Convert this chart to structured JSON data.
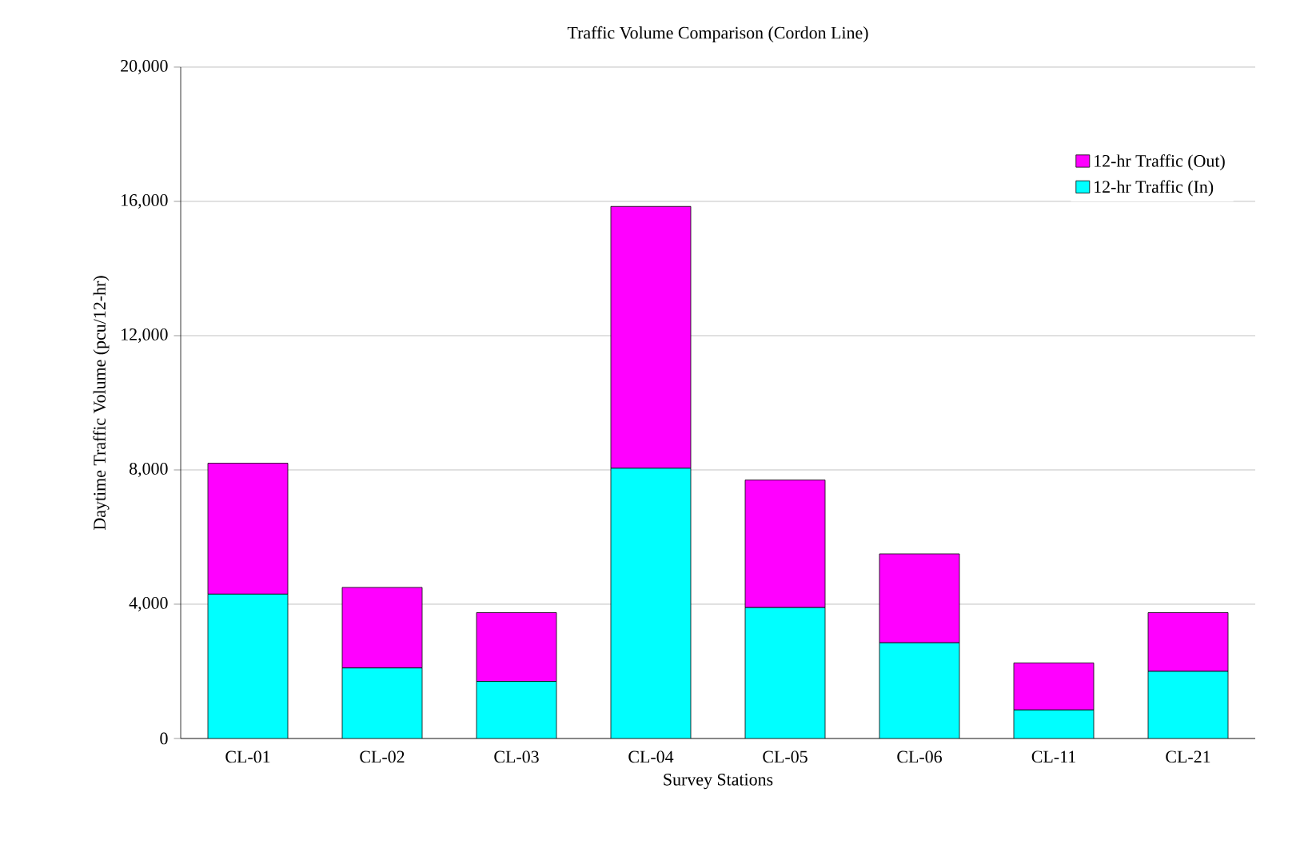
{
  "chart_data": {
    "type": "bar",
    "title": "Traffic Volume Comparison (Cordon Line)",
    "xlabel": "Survey Stations",
    "ylabel": "Daytime Traffic Volume (pcu/12-hr)",
    "categories": [
      "CL-01",
      "CL-02",
      "CL-03",
      "CL-04",
      "CL-05",
      "CL-06",
      "CL-11",
      "CL-21"
    ],
    "stacked": true,
    "series": [
      {
        "name": "12-hr Traffic (In)",
        "color": "#00ffff",
        "values": [
          4300,
          2100,
          1700,
          8050,
          3900,
          2850,
          850,
          2000
        ]
      },
      {
        "name": "12-hr Traffic (Out)",
        "color": "#ff00ff",
        "values": [
          3900,
          2400,
          2050,
          7800,
          3800,
          2650,
          1400,
          1750
        ]
      }
    ],
    "ylim": [
      0,
      20000
    ],
    "yticks": [
      {
        "value": 0,
        "label": "0"
      },
      {
        "value": 4000,
        "label": "4,000"
      },
      {
        "value": 8000,
        "label": "8,000"
      },
      {
        "value": 12000,
        "label": "12,000"
      },
      {
        "value": 16000,
        "label": "16,000"
      },
      {
        "value": 20000,
        "label": "20,000"
      }
    ],
    "grid": "y",
    "legend": "top right"
  }
}
